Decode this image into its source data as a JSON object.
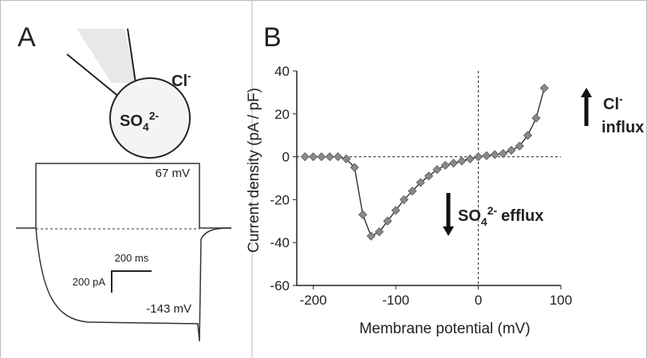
{
  "panel_a": {
    "label": "A",
    "cell_ion": {
      "base": "Cl",
      "sup": "-"
    },
    "pipette_ion": {
      "base": "SO",
      "sub": "4",
      "sup": "2-"
    },
    "trace_top": "67 mV",
    "trace_bottom": "-143 mV",
    "scale_time": "200 ms",
    "scale_current": "200 pA"
  },
  "chart_data": {
    "type": "line",
    "panel_label": "B",
    "x_label": "Membrane potential (mV)",
    "y_label": "Current density (pA / pF)",
    "x": [
      -210,
      -200,
      -190,
      -180,
      -170,
      -160,
      -150,
      -140,
      -130,
      -120,
      -110,
      -100,
      -90,
      -80,
      -70,
      -60,
      -50,
      -40,
      -30,
      -20,
      -10,
      0,
      10,
      20,
      30,
      40,
      50,
      60,
      70,
      80
    ],
    "series": [
      {
        "color": "#8a8a8a",
        "values": [
          0,
          0,
          0,
          0,
          0,
          -1,
          -5,
          -27,
          -37,
          -35,
          -30,
          -25,
          -20,
          -16,
          -12,
          -9,
          -6,
          -4,
          -3,
          -2,
          -1,
          0,
          0.5,
          1,
          1.5,
          3,
          5,
          10,
          18,
          32
        ]
      }
    ],
    "xlim": [
      -220,
      100
    ],
    "xticks": [
      -200,
      -100,
      0,
      100
    ],
    "ylim": [
      -60,
      40
    ],
    "yticks": [
      -60,
      -40,
      -20,
      0,
      20,
      40
    ],
    "annotations": [
      {
        "base": "Cl",
        "sup": "-",
        "text": "influx"
      },
      {
        "base": "SO",
        "sub": "4",
        "sup": "2-",
        "text": "efflux"
      }
    ]
  }
}
